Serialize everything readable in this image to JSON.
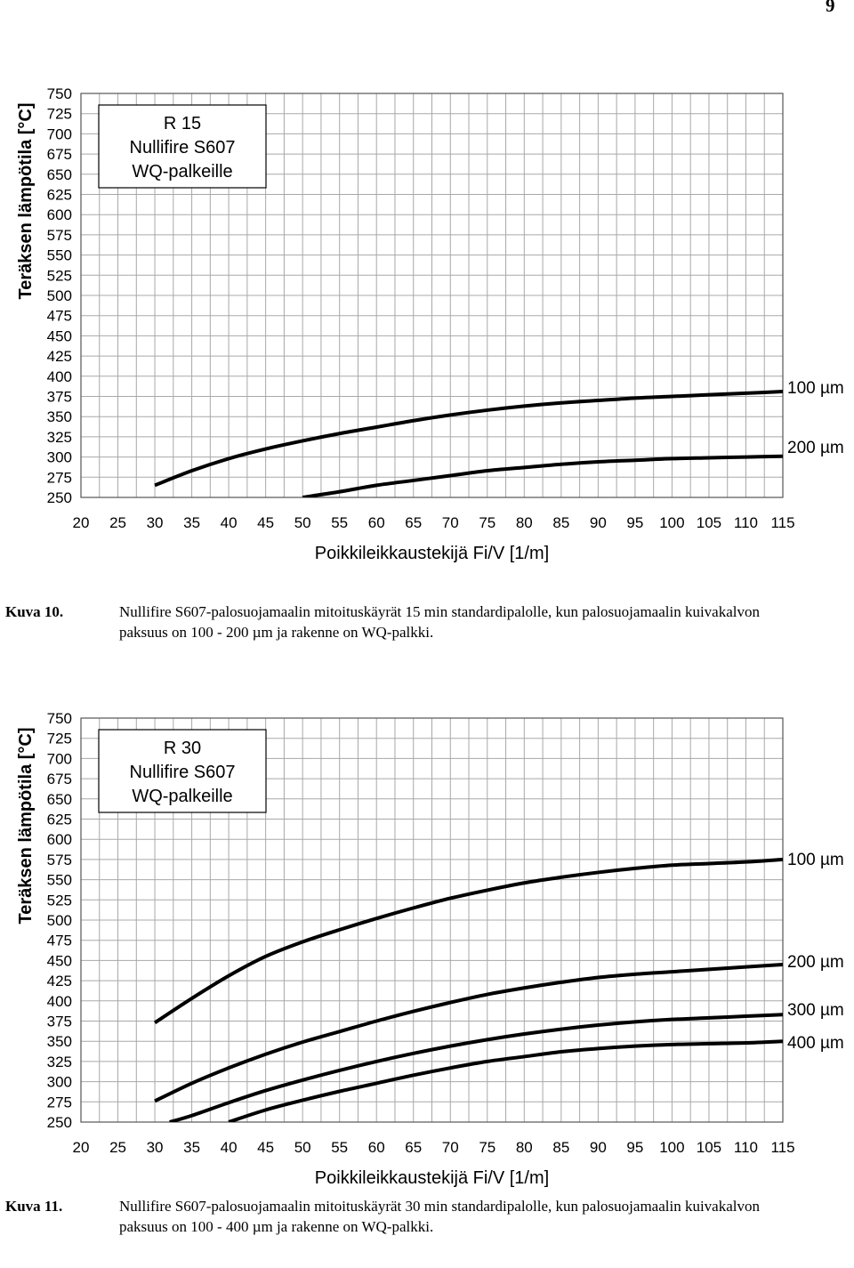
{
  "page": {
    "number": "9"
  },
  "chart_data": [
    {
      "type": "line",
      "title": [
        "R 15",
        "Nullifire S607",
        "WQ-palkeille"
      ],
      "xlabel": "Poikkileikkaustekijä Fi/V [1/m]",
      "ylabel": "Teräksen lämpötila [°C]",
      "xlim": [
        20,
        115
      ],
      "ylim": [
        250,
        750
      ],
      "xticks": [
        20,
        25,
        30,
        35,
        40,
        45,
        50,
        55,
        60,
        65,
        70,
        75,
        80,
        85,
        90,
        95,
        100,
        105,
        110,
        115
      ],
      "yticks": [
        250,
        275,
        300,
        325,
        350,
        375,
        400,
        425,
        450,
        475,
        500,
        525,
        550,
        575,
        600,
        625,
        650,
        675,
        700,
        725,
        750
      ],
      "grid": true,
      "series": [
        {
          "name": "100 µm",
          "x": [
            30,
            35,
            40,
            45,
            50,
            55,
            60,
            65,
            70,
            75,
            80,
            85,
            90,
            95,
            100,
            105,
            110,
            115
          ],
          "values": [
            265,
            283,
            298,
            310,
            320,
            329,
            337,
            345,
            352,
            358,
            363,
            367,
            370,
            373,
            375,
            377,
            379,
            381
          ]
        },
        {
          "name": "200 µm",
          "x": [
            50,
            55,
            60,
            65,
            70,
            75,
            80,
            85,
            90,
            95,
            100,
            105,
            110,
            115
          ],
          "values": [
            250,
            257,
            265,
            271,
            277,
            283,
            287,
            291,
            294,
            296,
            298,
            299,
            300,
            301
          ]
        }
      ]
    },
    {
      "type": "line",
      "title": [
        "R 30",
        "Nullifire S607",
        "WQ-palkeille"
      ],
      "xlabel": "Poikkileikkaustekijä Fi/V [1/m]",
      "ylabel": "Teräksen lämpötila [°C]",
      "xlim": [
        20,
        115
      ],
      "ylim": [
        250,
        750
      ],
      "xticks": [
        20,
        25,
        30,
        35,
        40,
        45,
        50,
        55,
        60,
        65,
        70,
        75,
        80,
        85,
        90,
        95,
        100,
        105,
        110,
        115
      ],
      "yticks": [
        250,
        275,
        300,
        325,
        350,
        375,
        400,
        425,
        450,
        475,
        500,
        525,
        550,
        575,
        600,
        625,
        650,
        675,
        700,
        725,
        750
      ],
      "grid": true,
      "series": [
        {
          "name": "100 µm",
          "x": [
            30,
            35,
            40,
            45,
            50,
            55,
            60,
            65,
            70,
            75,
            80,
            85,
            90,
            95,
            100,
            105,
            110,
            115
          ],
          "values": [
            373,
            403,
            431,
            455,
            473,
            488,
            502,
            515,
            527,
            537,
            546,
            553,
            559,
            564,
            568,
            570,
            572,
            575
          ]
        },
        {
          "name": "200 µm",
          "x": [
            30,
            35,
            40,
            45,
            50,
            55,
            60,
            65,
            70,
            75,
            80,
            85,
            90,
            95,
            100,
            105,
            110,
            115
          ],
          "values": [
            276,
            298,
            317,
            334,
            349,
            362,
            375,
            387,
            398,
            408,
            416,
            423,
            429,
            433,
            436,
            439,
            442,
            445
          ]
        },
        {
          "name": "300 µm",
          "x": [
            32,
            35,
            40,
            45,
            50,
            55,
            60,
            65,
            70,
            75,
            80,
            85,
            90,
            95,
            100,
            105,
            110,
            115
          ],
          "values": [
            250,
            258,
            274,
            289,
            302,
            314,
            325,
            335,
            344,
            352,
            359,
            365,
            370,
            374,
            377,
            379,
            381,
            383
          ]
        },
        {
          "name": "400 µm",
          "x": [
            40,
            45,
            50,
            55,
            60,
            65,
            70,
            75,
            80,
            85,
            90,
            95,
            100,
            105,
            110,
            115
          ],
          "values": [
            250,
            265,
            277,
            288,
            298,
            308,
            317,
            325,
            331,
            337,
            341,
            344,
            346,
            347,
            348,
            350
          ]
        }
      ]
    }
  ],
  "captions": [
    {
      "label": "Kuva 10.",
      "text": "Nullifire S607-palosuojamaalin mitoituskäyrät 15 min standardipalolle, kun palosuojamaalin kuivakalvon paksuus on 100 - 200 µm ja rakenne on WQ-palkki."
    },
    {
      "label": "Kuva 11.",
      "text": "Nullifire S607-palosuojamaalin mitoituskäyrät 30 min standardipalolle, kun palosuojamaalin kuivakalvon paksuus on 100 - 400 µm ja rakenne on WQ-palkki."
    }
  ]
}
